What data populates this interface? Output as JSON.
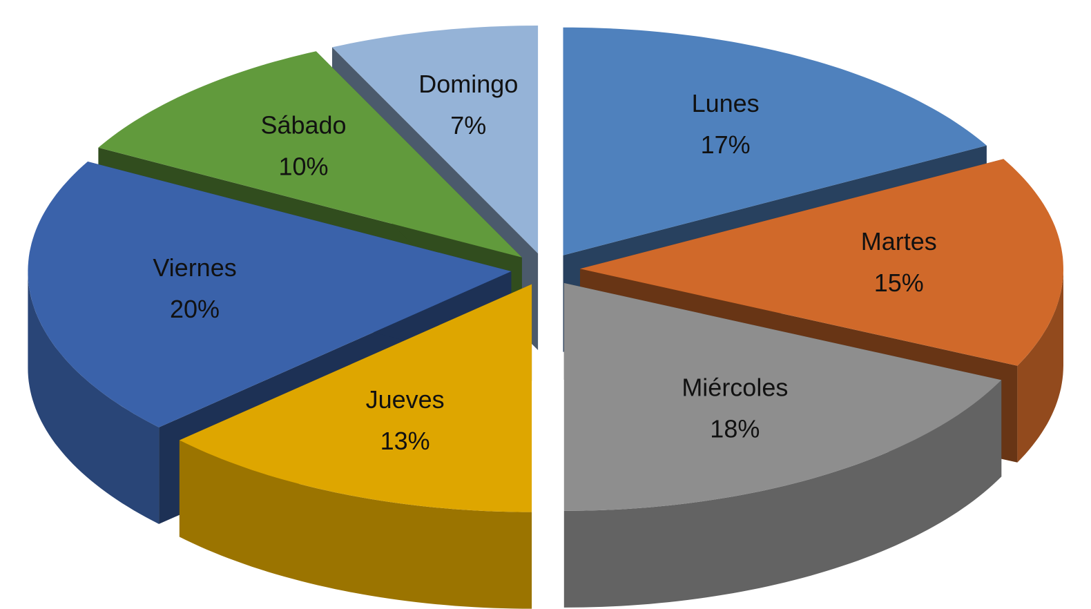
{
  "chart_data": {
    "type": "pie",
    "categories": [
      "Lunes",
      "Martes",
      "Miércoles",
      "Jueves",
      "Viernes",
      "Sábado",
      "Domingo"
    ],
    "values": [
      17,
      15,
      18,
      13,
      20,
      10,
      7
    ],
    "value_labels": [
      "17%",
      "15%",
      "18%",
      "13%",
      "20%",
      "10%",
      "7%"
    ],
    "colors": [
      "#4f81bd",
      "#d0692a",
      "#8e8e8e",
      "#dea600",
      "#3a62aa",
      "#619a3c",
      "#95b3d7"
    ],
    "start_angle": 90,
    "direction": "clockwise",
    "exploded": true,
    "three_d": true
  }
}
